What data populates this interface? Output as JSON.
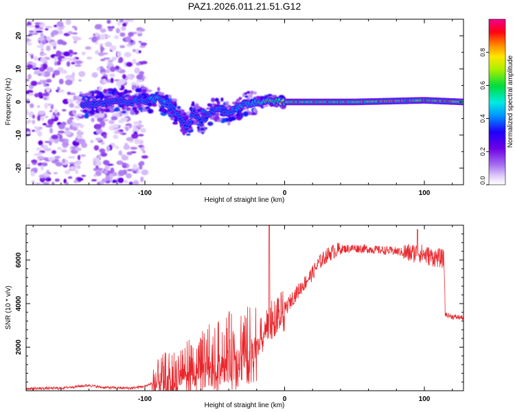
{
  "figure": {
    "title": "PAZ1.2026.011.21.51.G12"
  },
  "chart_data": [
    {
      "type": "heatmap",
      "title": "PAZ1.2026.011.21.51.G12",
      "xlabel": "Height of straight line (km)",
      "ylabel": "Frequency (Hz)",
      "xlim": [
        -185,
        128
      ],
      "ylim": [
        -25,
        25
      ],
      "xticks": [
        -100,
        0,
        100
      ],
      "xtick_labels": [
        "-100",
        "0",
        "100"
      ],
      "yticks": [
        -20,
        -10,
        0,
        10,
        20
      ],
      "ytick_labels": [
        "-20",
        "-10",
        "0",
        "10",
        "20"
      ],
      "colorbar": {
        "label": "Normalized spectral amplitude",
        "range": [
          0,
          1
        ],
        "ticks": [
          0.0,
          0.2,
          0.4,
          0.6,
          0.8
        ],
        "tick_labels": [
          "0.0",
          "0.2",
          "0.4",
          "0.6",
          "0.8"
        ],
        "colormap": "rainbow (white-lavender-purple-blue-cyan-green-yellow-orange-red-magenta)"
      },
      "ridge": {
        "description": "Dominant spectral energy near 0 Hz; noisy scatter from -185 to -100 km, wavy ridge from -100 to 0 km, narrow strong ridge at 0 Hz from 0 to 128 km",
        "x": [
          -145,
          -130,
          -120,
          -110,
          -100,
          -90,
          -80,
          -75,
          -70,
          -65,
          -60,
          -50,
          -40,
          -30,
          -20,
          -10,
          0,
          10,
          50,
          100,
          128
        ],
        "freq": [
          -1,
          0,
          0.5,
          0,
          0.5,
          1,
          -2,
          -5,
          -8,
          -3,
          -6,
          -2,
          -3,
          -1,
          0,
          0.5,
          0,
          0,
          0,
          0.5,
          0
        ],
        "amplitude": [
          0.25,
          0.35,
          0.3,
          0.35,
          0.4,
          0.45,
          0.4,
          0.35,
          0.3,
          0.35,
          0.3,
          0.35,
          0.4,
          0.45,
          0.5,
          0.7,
          0.75,
          0.85,
          0.9,
          0.9,
          0.9
        ]
      }
    },
    {
      "type": "line",
      "title": "",
      "xlabel": "Height of straight line (km)",
      "ylabel": "SNR (10 * v/v)",
      "xlim": [
        -185,
        128
      ],
      "ylim": [
        0,
        7600
      ],
      "xticks": [
        -100,
        0,
        100
      ],
      "xtick_labels": [
        "-100",
        "0",
        "100"
      ],
      "yticks": [
        2000,
        4000,
        6000
      ],
      "ytick_labels": [
        "2000",
        "4000",
        "6000"
      ],
      "color": "#e8262b",
      "series": [
        {
          "name": "SNR",
          "x": [
            -185,
            -160,
            -140,
            -130,
            -120,
            -110,
            -100,
            -90,
            -85,
            -80,
            -75,
            -70,
            -65,
            -60,
            -55,
            -50,
            -45,
            -40,
            -35,
            -30,
            -25,
            -20,
            -15,
            -10,
            -5,
            0,
            5,
            10,
            15,
            20,
            25,
            30,
            35,
            40,
            50,
            60,
            70,
            80,
            90,
            95,
            100,
            105,
            110,
            114,
            115,
            120,
            128
          ],
          "values": [
            100,
            120,
            250,
            150,
            130,
            120,
            200,
            500,
            800,
            700,
            1000,
            1300,
            1000,
            1300,
            1600,
            1500,
            1800,
            2000,
            1800,
            2200,
            2000,
            2400,
            2800,
            3200,
            3600,
            3700,
            4200,
            4600,
            5000,
            5400,
            5900,
            6200,
            6400,
            6500,
            6550,
            6500,
            6450,
            6400,
            6300,
            6350,
            6250,
            6150,
            6100,
            6050,
            3500,
            3400,
            3350
          ]
        }
      ]
    }
  ]
}
